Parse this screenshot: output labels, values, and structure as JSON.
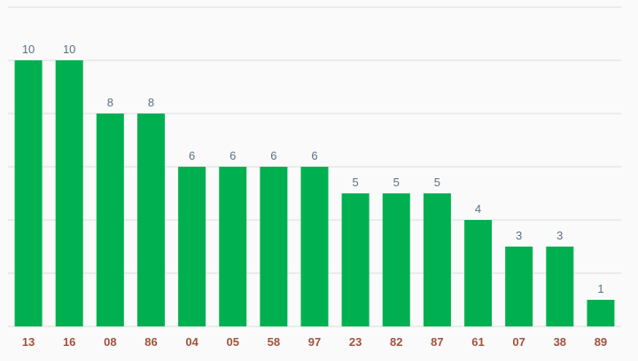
{
  "chart_data": {
    "type": "bar",
    "categories": [
      "13",
      "16",
      "08",
      "86",
      "04",
      "05",
      "58",
      "97",
      "23",
      "82",
      "87",
      "61",
      "07",
      "38",
      "89"
    ],
    "values": [
      10,
      10,
      8,
      8,
      6,
      6,
      6,
      6,
      5,
      5,
      5,
      4,
      3,
      3,
      1
    ],
    "ylim": [
      0,
      12
    ],
    "grid": true,
    "colors": {
      "bar": "#00b050",
      "value_label": "#5a6f85",
      "category_label": "#a0523d",
      "grid": "#dcdcdc",
      "background": "#fafafa"
    }
  }
}
